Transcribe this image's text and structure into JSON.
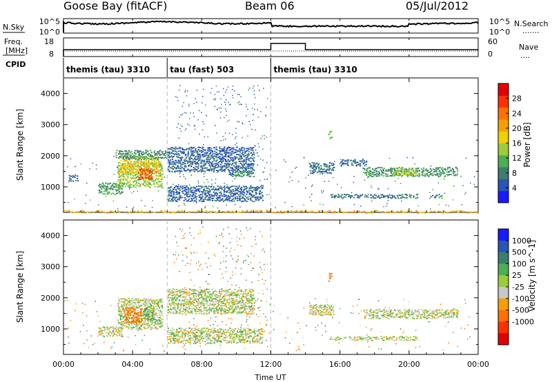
{
  "header": {
    "station": "Goose Bay (fitACF)",
    "beam": "Beam 06",
    "date": "05/Jul/2012"
  },
  "noise_panel": {
    "left_label": "N.Sky",
    "right_label": "N.Search",
    "left_ticks": [
      "10^5",
      "10^0"
    ],
    "right_ticks": [
      "10^5",
      "10^0"
    ],
    "right_legend": "......."
  },
  "freq_panel": {
    "left_label_line1": "Freq.",
    "left_label_line2": "[MHz]",
    "right_label": "Nave",
    "left_ticks": [
      "18",
      "8"
    ],
    "right_ticks": [
      "60",
      "0"
    ],
    "right_legend": "...."
  },
  "cpid": {
    "label": "CPID",
    "segments": [
      {
        "name": "themis (tau) 3310",
        "start_hour": 0,
        "end_hour": 6
      },
      {
        "name": "tau (fast) 503",
        "start_hour": 6,
        "end_hour": 12
      },
      {
        "name": "themis (tau) 3310",
        "start_hour": 12,
        "end_hour": 24
      }
    ]
  },
  "chart_data": [
    {
      "type": "heatmap",
      "title": "",
      "xlabel": "Time UT",
      "ylabel": "Slant Range [km]",
      "xlim": [
        0,
        24
      ],
      "ylim": [
        180,
        4500
      ],
      "yticks": [
        1000,
        2000,
        3000,
        4000
      ],
      "colorbar": {
        "label": "Power [dB]",
        "ticks": [
          "4",
          "8",
          "12",
          "16",
          "20",
          "24",
          "28"
        ],
        "colors": [
          "#1a1aff",
          "#2855b8",
          "#3c7d6e",
          "#4caf50",
          "#9ccc3a",
          "#f0d000",
          "#f5a000",
          "#ff7000",
          "#ff3000",
          "#e00000"
        ]
      },
      "regions": [
        {
          "t0": 0.3,
          "t1": 0.8,
          "r0": 1200,
          "r1": 1400,
          "value": 6
        },
        {
          "t0": 2.0,
          "t1": 3.4,
          "r0": 780,
          "r1": 1150,
          "value": 10
        },
        {
          "t0": 3.1,
          "t1": 5.7,
          "r0": 1000,
          "r1": 1800,
          "value": 14
        },
        {
          "t0": 3.2,
          "t1": 5.6,
          "r0": 1450,
          "r1": 2000,
          "value": 18
        },
        {
          "t0": 4.3,
          "t1": 5.1,
          "r0": 1250,
          "r1": 1600,
          "value": 26
        },
        {
          "t0": 3.0,
          "t1": 6.0,
          "r0": 1900,
          "r1": 2200,
          "value": 9
        },
        {
          "t0": 6.0,
          "t1": 11.0,
          "r0": 1500,
          "r1": 2300,
          "value": 6
        },
        {
          "t0": 6.0,
          "t1": 11.5,
          "r0": 550,
          "r1": 1050,
          "value": 6
        },
        {
          "t0": 9.5,
          "t1": 11.0,
          "r0": 1350,
          "r1": 1500,
          "value": 9
        },
        {
          "t0": 14.2,
          "t1": 15.6,
          "r0": 1450,
          "r1": 1800,
          "value": 7
        },
        {
          "t0": 16.0,
          "t1": 17.5,
          "r0": 1700,
          "r1": 1900,
          "value": 6
        },
        {
          "t0": 15.4,
          "t1": 20.5,
          "r0": 650,
          "r1": 780,
          "value": 7
        },
        {
          "t0": 17.3,
          "t1": 22.8,
          "r0": 1350,
          "r1": 1650,
          "value": 10
        },
        {
          "t0": 19.0,
          "t1": 20.4,
          "r0": 1400,
          "r1": 1600,
          "value": 15
        },
        {
          "t0": 21.2,
          "t1": 21.9,
          "r0": 650,
          "r1": 780,
          "value": 8
        },
        {
          "t0": 15.3,
          "t1": 15.5,
          "r0": 2550,
          "r1": 2850,
          "value": 13
        },
        {
          "t0": 0.0,
          "t1": 24.0,
          "r0": 180,
          "r1": 260,
          "value": 20
        }
      ]
    },
    {
      "type": "heatmap",
      "title": "",
      "xlabel": "Time UT",
      "ylabel": "Slant Range [km]",
      "xlim": [
        0,
        24
      ],
      "ylim": [
        180,
        4500
      ],
      "yticks": [
        1000,
        2000,
        3000,
        4000
      ],
      "xticks": [
        "00:00",
        "04:00",
        "08:00",
        "12:00",
        "16:00",
        "20:00",
        "00:00"
      ],
      "colorbar": {
        "label": "Velocity [m s^-1]",
        "ticks": [
          "1000",
          "500",
          "100",
          "25",
          "-25",
          "-100",
          "-500",
          "-1000"
        ],
        "colors": [
          "#1a1aff",
          "#2855b8",
          "#3c7d6e",
          "#4caf50",
          "#9ccc3a",
          "#c8c8c8",
          "#f5a000",
          "#ff7000",
          "#ff3000",
          "#e00000"
        ]
      },
      "regions": [
        {
          "t0": 2.0,
          "t1": 3.4,
          "r0": 780,
          "r1": 1100,
          "value": 0
        },
        {
          "t0": 3.1,
          "t1": 5.7,
          "r0": 1000,
          "r1": 2000,
          "value": 0
        },
        {
          "t0": 3.5,
          "t1": 4.5,
          "r0": 1200,
          "r1": 1700,
          "value": -150
        },
        {
          "t0": 4.6,
          "t1": 5.2,
          "r0": 1300,
          "r1": 1700,
          "value": 50
        },
        {
          "t0": 6.0,
          "t1": 11.0,
          "r0": 1500,
          "r1": 2300,
          "value": 0
        },
        {
          "t0": 6.0,
          "t1": 11.5,
          "r0": 550,
          "r1": 1050,
          "value": 0
        },
        {
          "t0": 14.2,
          "t1": 15.6,
          "r0": 1450,
          "r1": 1800,
          "value": 0
        },
        {
          "t0": 15.4,
          "t1": 20.5,
          "r0": 650,
          "r1": 780,
          "value": 0
        },
        {
          "t0": 17.3,
          "t1": 22.8,
          "r0": 1350,
          "r1": 1650,
          "value": 0
        },
        {
          "t0": 15.3,
          "t1": 15.5,
          "r0": 2550,
          "r1": 2850,
          "value": -200
        }
      ]
    }
  ]
}
